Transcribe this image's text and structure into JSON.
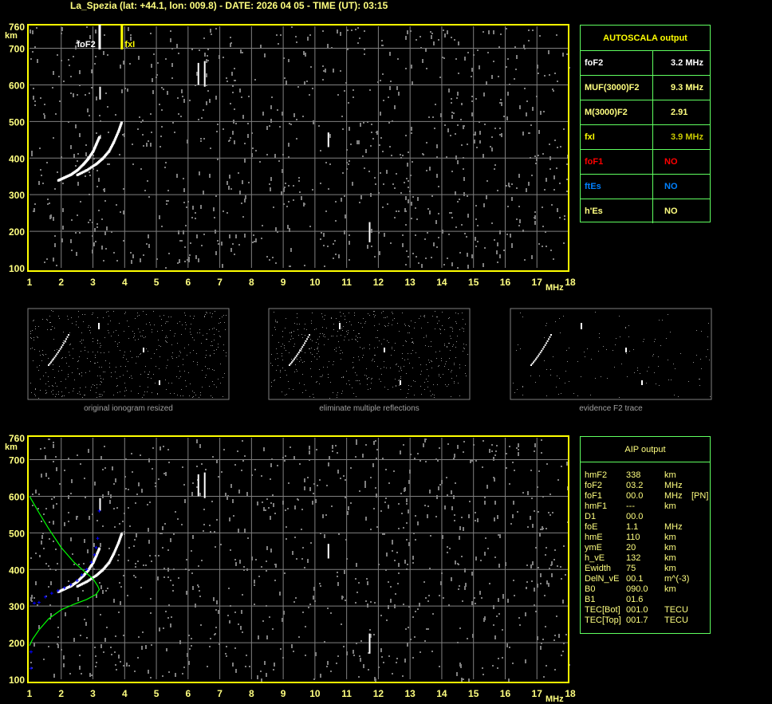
{
  "header": {
    "title": "La_Spezia (lat: +44.1, lon: 009.8) - DATE: 2026 04 05 - TIME (UT): 03:15"
  },
  "colors": {
    "axis": "#ffff00",
    "grid": "#808080",
    "trace": "#ffffff",
    "noise": "#808080",
    "profile": "#00ff00",
    "points": "#0000ff",
    "table_border": "#60ff60"
  },
  "chart_data": [
    {
      "type": "scatter",
      "name_id": "top-ionogram",
      "xlabel": "MHz",
      "ylabel": "km",
      "xlim": [
        1,
        18
      ],
      "ylim": [
        100,
        760
      ],
      "xticks": [
        "1",
        "2",
        "3",
        "4",
        "5",
        "6",
        "7",
        "8",
        "9",
        "10",
        "11",
        "12",
        "13",
        "14",
        "15",
        "16",
        "17",
        "18"
      ],
      "yticks": [
        "100",
        "200",
        "300",
        "400",
        "500",
        "600",
        "700",
        "760"
      ],
      "grid": true,
      "markers": [
        {
          "label": "foF2",
          "x": 3.2,
          "color": "#ffffff"
        },
        {
          "label": "fxI",
          "x": 3.9,
          "color": "#ffff00"
        }
      ],
      "traces": {
        "o_mode": [
          [
            1.9,
            340
          ],
          [
            2.1,
            348
          ],
          [
            2.3,
            356
          ],
          [
            2.5,
            368
          ],
          [
            2.7,
            385
          ],
          [
            2.85,
            400
          ],
          [
            3.0,
            420
          ],
          [
            3.1,
            440
          ],
          [
            3.2,
            460
          ]
        ],
        "x_mode": [
          [
            2.5,
            355
          ],
          [
            2.8,
            368
          ],
          [
            3.1,
            385
          ],
          [
            3.3,
            400
          ],
          [
            3.5,
            420
          ],
          [
            3.65,
            445
          ],
          [
            3.8,
            475
          ],
          [
            3.9,
            500
          ]
        ]
      }
    },
    {
      "type": "scatter",
      "name_id": "bottom-ionogram",
      "xlabel": "MHz",
      "ylabel": "km",
      "xlim": [
        1,
        18
      ],
      "ylim": [
        100,
        760
      ],
      "xticks": [
        "1",
        "2",
        "3",
        "4",
        "5",
        "6",
        "7",
        "8",
        "9",
        "10",
        "11",
        "12",
        "13",
        "14",
        "15",
        "16",
        "17",
        "18"
      ],
      "yticks": [
        "100",
        "200",
        "300",
        "400",
        "500",
        "600",
        "700",
        "760"
      ],
      "grid": true,
      "profile": [
        [
          1.0,
          600
        ],
        [
          1.3,
          555
        ],
        [
          1.6,
          512
        ],
        [
          2.0,
          460
        ],
        [
          2.4,
          420
        ],
        [
          2.7,
          397
        ],
        [
          3.0,
          375
        ],
        [
          3.15,
          355
        ],
        [
          3.2,
          345
        ],
        [
          3.1,
          332
        ],
        [
          2.8,
          318
        ],
        [
          2.4,
          305
        ],
        [
          2.0,
          290
        ],
        [
          1.6,
          265
        ],
        [
          1.3,
          235
        ],
        [
          1.1,
          210
        ],
        [
          1.0,
          192
        ]
      ],
      "fitted_points": [
        [
          1.15,
          308
        ],
        [
          1.3,
          310
        ],
        [
          1.5,
          325
        ],
        [
          1.7,
          335
        ],
        [
          1.9,
          342
        ],
        [
          2.1,
          350
        ],
        [
          2.3,
          358
        ],
        [
          2.5,
          370
        ],
        [
          2.65,
          385
        ],
        [
          2.8,
          400
        ],
        [
          2.95,
          420
        ],
        [
          3.05,
          440
        ],
        [
          3.1,
          460
        ],
        [
          3.15,
          485
        ],
        [
          3.2,
          560
        ],
        [
          1.05,
          175
        ],
        [
          1.05,
          130
        ]
      ]
    }
  ],
  "autoscala": {
    "title": "AUTOSCALA output",
    "rows": [
      {
        "key": "foF2",
        "value": "3.2 MHz",
        "color": "#ffffff"
      },
      {
        "key": "MUF(3000)F2",
        "value": "9.3 MHz",
        "color": "#ffff80"
      },
      {
        "key": "M(3000)F2",
        "value": "2.91",
        "color": "#ffff80"
      },
      {
        "key": "fxI",
        "value": "3.9 MHz",
        "key_color": "#ffff00",
        "color": "#c8c800"
      },
      {
        "key": "foF1",
        "value": "NO",
        "color": "#ff0000"
      },
      {
        "key": "ftEs",
        "value": "NO",
        "color": "#0080ff"
      },
      {
        "key": "h'Es",
        "value": "NO",
        "color": "#ffff80"
      }
    ]
  },
  "aip": {
    "title": "AIP output",
    "rows": [
      {
        "k": "hmF2",
        "v": "338",
        "u": "km",
        "x": ""
      },
      {
        "k": "foF2",
        "v": "03.2",
        "u": "MHz",
        "x": ""
      },
      {
        "k": "foF1",
        "v": "00.0",
        "u": "MHz",
        "x": "[PN]"
      },
      {
        "k": "hmF1",
        "v": "---",
        "u": "km",
        "x": ""
      },
      {
        "k": "D1",
        "v": "00.0",
        "u": "",
        "x": ""
      },
      {
        "k": "foE",
        "v": "1.1",
        "u": "MHz",
        "x": ""
      },
      {
        "k": "hmE",
        "v": "110",
        "u": "km",
        "x": ""
      },
      {
        "k": "ymE",
        "v": "20",
        "u": "km",
        "x": ""
      },
      {
        "k": "h_vE",
        "v": "132",
        "u": "km",
        "x": ""
      },
      {
        "k": "Ewidth",
        "v": "75",
        "u": "km",
        "x": ""
      },
      {
        "k": "DelN_vE",
        "v": "00.1",
        "u": "m^(-3)",
        "x": ""
      },
      {
        "k": "B0",
        "v": "090.0",
        "u": "km",
        "x": ""
      },
      {
        "k": "B1",
        "v": "01.6",
        "u": "",
        "x": ""
      },
      {
        "k": "TEC[Bot]",
        "v": "001.0",
        "u": "TECU",
        "x": ""
      },
      {
        "k": "TEC[Top]",
        "v": "001.7",
        "u": "TECU",
        "x": ""
      }
    ]
  },
  "thumbnails": [
    {
      "caption": "original ionogram resized"
    },
    {
      "caption": "eliminate multiple reflections"
    },
    {
      "caption": "evidence F2 trace"
    }
  ]
}
